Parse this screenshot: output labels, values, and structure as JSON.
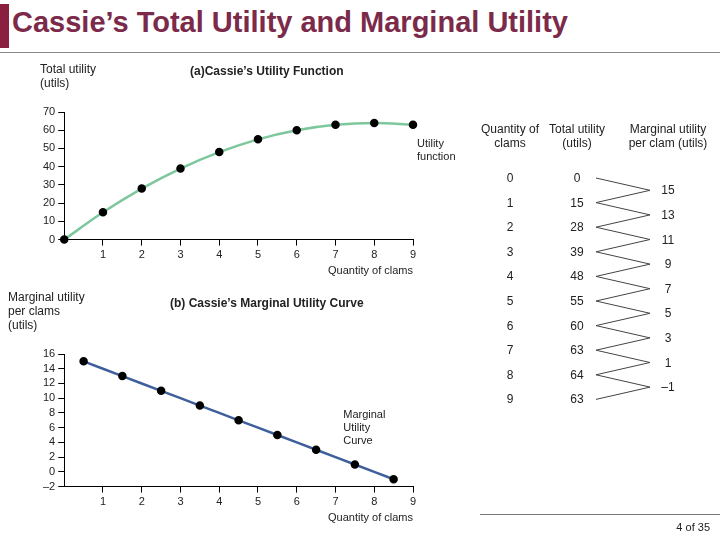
{
  "title": "Cassie’s Total Utility and Marginal Utility",
  "chart_data": [
    {
      "type": "line",
      "title": "(a)Cassie’s Utility Function",
      "y_label": "Total utility (utils)",
      "x_label": "Quantity of clams",
      "annotation": "Utility function",
      "x": [
        0,
        1,
        2,
        3,
        4,
        5,
        6,
        7,
        8,
        9
      ],
      "values": [
        0,
        15,
        28,
        39,
        48,
        55,
        60,
        63,
        64,
        63
      ],
      "color": "#7cc89c",
      "marker": "circle",
      "xlim": [
        0,
        9
      ],
      "xticks": [
        1,
        2,
        3,
        4,
        5,
        6,
        7,
        8,
        9
      ],
      "ylim": [
        0,
        70
      ],
      "yticks": [
        0,
        10,
        20,
        30,
        40,
        50,
        60,
        70
      ],
      "grid": false
    },
    {
      "type": "line",
      "title": "(b) Cassie’s Marginal Utility Curve",
      "y_label": "Marginal utility per clams (utils)",
      "x_label": "Quantity of clams",
      "annotation": "Marginal Utility Curve",
      "x": [
        0.5,
        1.5,
        2.5,
        3.5,
        4.5,
        5.5,
        6.5,
        7.5,
        8.5
      ],
      "values": [
        15,
        13,
        11,
        9,
        7,
        5,
        3,
        1,
        -1
      ],
      "color": "#3f5f9c",
      "marker": "circle",
      "xlim": [
        0,
        9
      ],
      "xticks": [
        1,
        2,
        3,
        4,
        5,
        6,
        7,
        8,
        9
      ],
      "ylim": [
        -2,
        16
      ],
      "yticks": [
        {
          "value": -2,
          "label": "–2"
        },
        0,
        2,
        4,
        6,
        8,
        10,
        12,
        14,
        16
      ],
      "grid": false
    }
  ],
  "table": {
    "columns": [
      "Quantity of clams",
      "Total utility (utils)",
      "Marginal utility per clam (utils)"
    ],
    "quantity": [
      0,
      1,
      2,
      3,
      4,
      5,
      6,
      7,
      8,
      9
    ],
    "total_utility": [
      0,
      15,
      28,
      39,
      48,
      55,
      60,
      63,
      64,
      63
    ],
    "marginal_utility": [
      "15",
      "13",
      "11",
      "9",
      "7",
      "5",
      "3",
      "1",
      "–1"
    ]
  },
  "footer": "4 of 35"
}
